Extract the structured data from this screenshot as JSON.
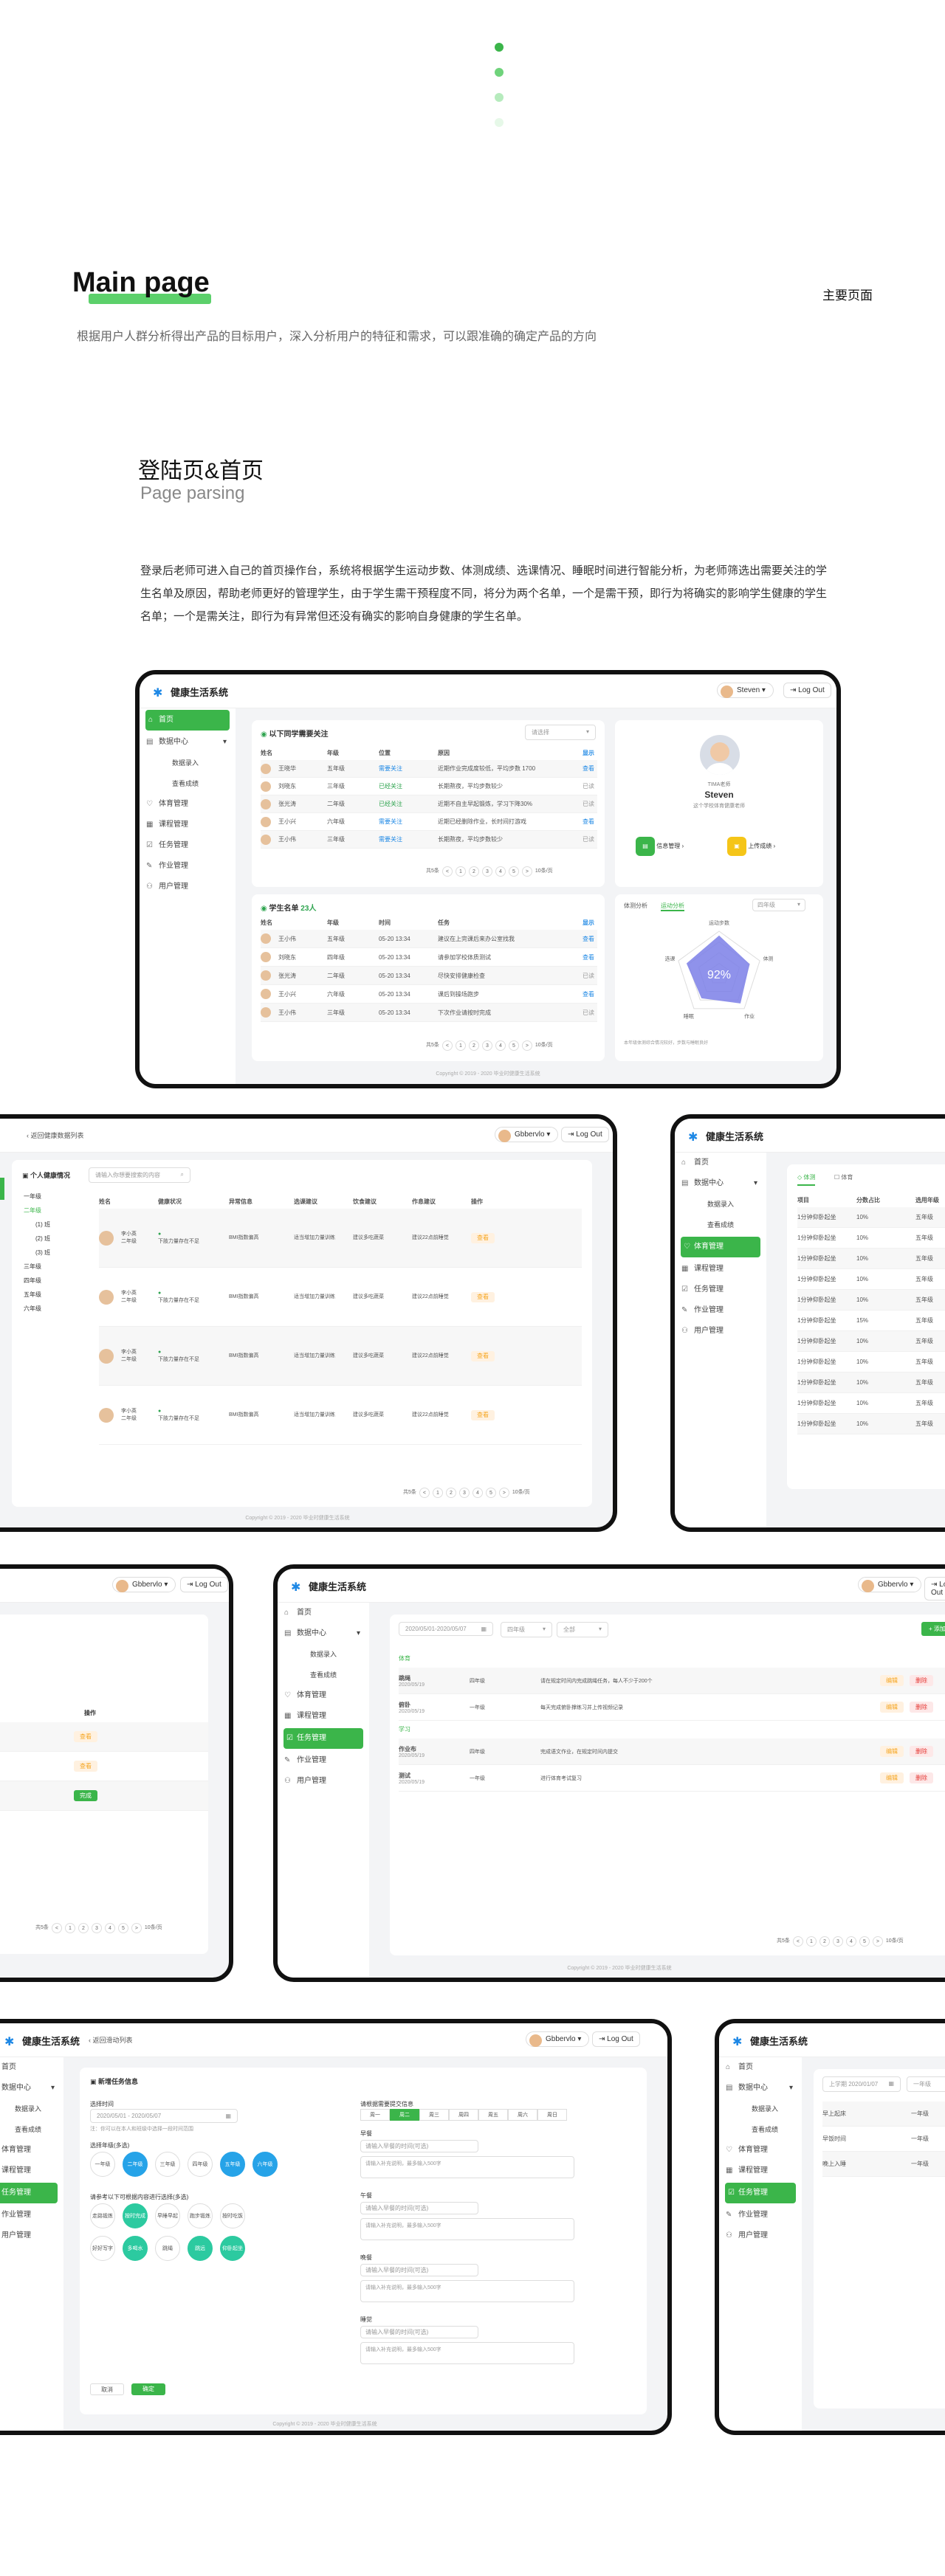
{
  "colors": {
    "brand_green": "#3bb54a",
    "accent_blue": "#1e88e5",
    "dot1": "#3bb54a",
    "dot2": "#6fd37b",
    "dot3": "#b6ebbd",
    "dot4": "#e6f8e8"
  },
  "header": {
    "title": "Main page",
    "title_cn": "主要页面",
    "desc": "根据用户人群分析得出产品的目标用户，深入分析用户的特征和需求，可以跟准确的确定产品的方向"
  },
  "section": {
    "title": "登陆页&首页",
    "subtitle": "Page parsing",
    "paragraph": "登录后老师可进入自己的首页操作台，系统将根据学生运动步数、体测成绩、选课情况、睡眠时间进行智能分析，为老师筛选出需要关注的学生名单及原因，帮助老师更好的管理学生，由于学生需干预程度不同，将分为两个名单，一个是需干预，即行为将确实的影响学生健康的学生名单；一个是需关注，即行为有异常但还没有确实的影响自身健康的学生名单。"
  },
  "app": {
    "name": "健康生活系统",
    "user": "Steven",
    "user2": "Gbbervlo",
    "logout": "Log Out",
    "footer": "Copyright © 2019 - 2020 毕业时健康生活系统",
    "nav": [
      "首页",
      "数据中心",
      "数据录入",
      "查看成绩",
      "体育管理",
      "课程管理",
      "任务管理",
      "作业管理",
      "用户管理"
    ],
    "back": "返回健康数据列表"
  },
  "screen1": {
    "attention_title": "以下同学需要关注",
    "attention_filter": "请选择",
    "cols": [
      "姓名",
      "年级",
      "位置",
      "原因",
      "显示详情"
    ],
    "attention_rows": [
      {
        "name": "王晓华",
        "grade": "五年级",
        "tag": "需要关注",
        "reason": "近期作业完成度较低，平均步数 1700",
        "act": "查看"
      },
      {
        "name": "刘晓东",
        "grade": "三年级",
        "tag": "已经关注",
        "reason": "长期熬夜，平均步数较少",
        "act": "已读"
      },
      {
        "name": "张光涛",
        "grade": "二年级",
        "tag": "已经关注",
        "reason": "近期不自主早起锻炼，学习下降30%",
        "act": "已读"
      },
      {
        "name": "王小兴",
        "grade": "六年级",
        "tag": "需要关注",
        "reason": "近期已经删除作业，长时间打游戏",
        "act": "查看"
      },
      {
        "name": "王小伟",
        "grade": "三年级",
        "tag": "需要关注",
        "reason": "长期熬夜，平均步数较少",
        "act": "已读"
      }
    ],
    "intervene_title": "学生名单",
    "intervene_count": "23人",
    "intervene_cols": [
      "姓名",
      "年级",
      "时间",
      "任务",
      "显示详情"
    ],
    "intervene_rows": [
      {
        "name": "王小伟",
        "grade": "五年级",
        "time": "05-20 13:34",
        "task": "建议在上完课后来办公室找我",
        "act": "查看"
      },
      {
        "name": "刘晓东",
        "grade": "四年级",
        "time": "05-20 13:34",
        "task": "请参加学校体质测试",
        "act": "查看"
      },
      {
        "name": "张光涛",
        "grade": "二年级",
        "time": "05-20 13:34",
        "task": "尽快安排健康检查",
        "act": "已读"
      },
      {
        "name": "王小兴",
        "grade": "六年级",
        "time": "05-20 13:34",
        "task": "课后到操场跑步",
        "act": "查看"
      },
      {
        "name": "王小伟",
        "grade": "三年级",
        "time": "05-20 13:34",
        "task": "下次作业请按时完成",
        "act": "已读"
      }
    ],
    "total": "共5条",
    "pages": [
      "<",
      "1",
      "2",
      "3",
      "4",
      "5",
      ">"
    ],
    "per": "10条/页",
    "profile": {
      "role": "TIMA老师",
      "name": "Steven",
      "desc": "这个学校体育健康老师",
      "btn1": "信息管理",
      "btn2": "上传成绩"
    },
    "radar": {
      "tab1": "体测分析",
      "tab2": "运动分析",
      "filter": "四年级",
      "value": "92%",
      "labels": [
        "运动步数",
        "体测",
        "作业",
        "睡眠",
        "选课"
      ],
      "note": "本年级体测综合情况较好，步数与睡眠良好"
    }
  },
  "screen2": {
    "search_label": "个人健康情况",
    "search_placeholder": "请输入你想要搜索的内容",
    "tree": [
      "一年级",
      "二年级",
      "(1) 班",
      "(2) 班",
      "(3) 班",
      "三年级",
      "四年级",
      "五年级",
      "六年级"
    ],
    "cols": [
      "姓名",
      "健康状况",
      "异常信息",
      "选课建议",
      "饮食建议",
      "作息建议",
      "操作"
    ],
    "rows": [
      {
        "name": "李小英",
        "grade": "二年级",
        "a": "下肢力量存在不足",
        "b": "BMI指数偏高",
        "c": "适当增加力量训练",
        "d": "建议多吃蔬菜",
        "e": "建议22点前睡觉",
        "op": "查看"
      },
      {
        "name": "李小英",
        "grade": "二年级",
        "a": "下肢力量存在不足",
        "b": "BMI指数偏高",
        "c": "适当增加力量训练",
        "d": "建议多吃蔬菜",
        "e": "建议22点前睡觉",
        "op": "查看"
      },
      {
        "name": "李小英",
        "grade": "二年级",
        "a": "下肢力量存在不足",
        "b": "BMI指数偏高",
        "c": "适当增加力量训练",
        "d": "建议多吃蔬菜",
        "e": "建议22点前睡觉",
        "op": "查看"
      },
      {
        "name": "李小英",
        "grade": "二年级",
        "a": "下肢力量存在不足",
        "b": "BMI指数偏高",
        "c": "适当增加力量训练",
        "d": "建议多吃蔬菜",
        "e": "建议22点前睡觉",
        "op": "查看"
      }
    ],
    "total": "共5条"
  },
  "screen3": {
    "tab1": "体测",
    "tab2": "体育",
    "cols": [
      "项目",
      "分数占比",
      "选用年级"
    ],
    "rows": [
      {
        "a": "1分钟仰卧起坐",
        "b": "10%",
        "c": "五年级"
      },
      {
        "a": "1分钟仰卧起坐",
        "b": "10%",
        "c": "五年级"
      },
      {
        "a": "1分钟仰卧起坐",
        "b": "10%",
        "c": "五年级"
      },
      {
        "a": "1分钟仰卧起坐",
        "b": "10%",
        "c": "五年级"
      },
      {
        "a": "1分钟仰卧起坐",
        "b": "10%",
        "c": "五年级"
      },
      {
        "a": "1分钟仰卧起坐",
        "b": "15%",
        "c": "五年级"
      },
      {
        "a": "1分钟仰卧起坐",
        "b": "10%",
        "c": "五年级"
      },
      {
        "a": "1分钟仰卧起坐",
        "b": "10%",
        "c": "五年级"
      },
      {
        "a": "1分钟仰卧起坐",
        "b": "10%",
        "c": "五年级"
      },
      {
        "a": "1分钟仰卧起坐",
        "b": "10%",
        "c": "五年级"
      },
      {
        "a": "1分钟仰卧起坐",
        "b": "10%",
        "c": "五年级"
      }
    ]
  },
  "screen4": {
    "col": "操作",
    "ops": [
      "查看",
      "查看",
      "完成"
    ],
    "total": "共10条"
  },
  "screen5": {
    "date": "2020/05/01-2020/05/07",
    "f1": "四年级",
    "f2": "全部",
    "add": "+ 添加任务",
    "groups": [
      {
        "label": "体育",
        "items": [
          {
            "name": "跳绳",
            "time": "2020/05/19",
            "grade": "四年级",
            "desc": "请在规定时间内完成跳绳任务，每人不少于200个",
            "ops": [
              "编辑",
              "删除"
            ]
          },
          {
            "name": "俯卧",
            "time": "2020/05/19",
            "grade": "一年级",
            "desc": "每天完成俯卧撑练习并上传视频记录",
            "ops": [
              "编辑",
              "删除"
            ]
          }
        ]
      },
      {
        "label": "学习",
        "items": [
          {
            "name": "作业布",
            "time": "2020/05/19",
            "grade": "四年级",
            "desc": "完成语文作业，在规定时间内提交",
            "ops": [
              "编辑",
              "删除"
            ]
          },
          {
            "name": "测试",
            "time": "2020/05/19",
            "grade": "一年级",
            "desc": "进行体育考试复习",
            "ops": [
              "编辑",
              "删除"
            ]
          }
        ]
      }
    ],
    "total": "共10条"
  },
  "screen6": {
    "title": "新增任务信息",
    "date_label": "选择时间",
    "date": "2020/05/01 - 2020/05/07",
    "date_note": "注：你可以在本人和班级中选择一段时间范围",
    "grade_label": "选择年级(多选)",
    "grades": [
      "一年级",
      "二年级",
      "三年级",
      "四年级",
      "五年级",
      "六年级"
    ],
    "type_label": "请参考以下可根据内容进行选择(多选)",
    "types": [
      "走路锻炼",
      "按时完成作业",
      "早睡早起",
      "跑步锻炼",
      "按时吃饭",
      "好好写字",
      "多喝水",
      "跳绳",
      "跳远",
      "仰卧起坐"
    ],
    "right_label": "请根据需要提交信息",
    "weekdays": [
      "周一",
      "周二",
      "周三",
      "周四",
      "周五",
      "周六",
      "周日"
    ],
    "fields": [
      "早餐",
      "午餐",
      "晚餐",
      "睡觉"
    ],
    "field_input": "请输入早餐的时间(可选)",
    "field_area": "请输入补充说明，最多输入500字",
    "cancel": "取消",
    "ok": "确定"
  },
  "screen7": {
    "date": "上学期 2020/01/07",
    "rows": [
      {
        "a": "早上起床",
        "b": "一年级"
      },
      {
        "a": "早饭时间",
        "b": "一年级"
      },
      {
        "a": "晚上入睡",
        "b": "一年级"
      }
    ]
  }
}
